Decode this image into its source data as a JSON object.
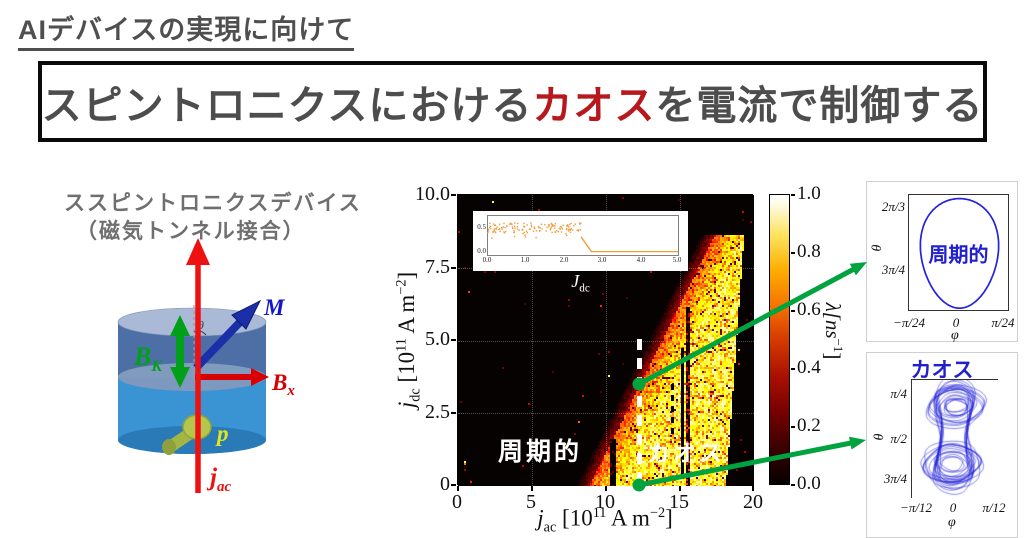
{
  "heading": "AIデバイスの実現に向けて",
  "title": {
    "pre": "スピントロニクスにおける",
    "highlight": "カオス",
    "post": "を電流で制御する"
  },
  "device": {
    "caption_line1": "ススピントロニクスデバイス",
    "caption_line2": "（磁気トンネル接合）",
    "labels": {
      "m": "M",
      "bk_var": "B",
      "bk_sub": "K",
      "bx_var": "B",
      "bx_sub": "x",
      "p": "p",
      "theta": "θ",
      "jac_var": "j",
      "jac_sub": "ac"
    }
  },
  "heatmap": {
    "yticks": [
      "10.0",
      "7.5",
      "5.0",
      "2.5",
      "0"
    ],
    "xticks": [
      "0",
      "5",
      "10",
      "15",
      "20"
    ],
    "ylabel": {
      "var": "j",
      "sub": "dc",
      "a": " [10",
      "exp": "11",
      "b": " A m",
      "exp2": "−2",
      "c": "]"
    },
    "xlabel": {
      "var": "j",
      "sub": "ac",
      "a": " [10",
      "exp": "11",
      "b": " A m",
      "exp2": "−2",
      "c": "]"
    },
    "region_periodic": "周期的",
    "region_chaos": "カオス",
    "inset": {
      "xticks": [
        "0.0",
        "1.0",
        "2.0",
        "3.0",
        "4.0",
        "5.0"
      ],
      "yticks": [
        "0.5",
        "0.0"
      ],
      "xlabel_var": "J",
      "xlabel_sub": "dc"
    },
    "colorbar": {
      "ticks": [
        "1.0",
        "0.8",
        "0.6",
        "0.4",
        "0.2",
        "0.0"
      ],
      "label_pre": "λ[ns",
      "label_sup": "−1",
      "label_post": "]"
    }
  },
  "panel_periodic": {
    "title": "周期的",
    "yticks": [
      "2π/3",
      "3π/4"
    ],
    "xticks": [
      "−π/24",
      "0",
      "π/24"
    ],
    "xlabel": "φ",
    "ylabel": "θ"
  },
  "panel_chaos": {
    "title": "カオス",
    "yticks": [
      "π/4",
      "π/2",
      "3π/4"
    ],
    "xticks": [
      "−π/12",
      "0",
      "π/12"
    ],
    "xlabel": "φ",
    "ylabel": "θ"
  },
  "colors": {
    "accent_green": "#00a33e",
    "accent_red": "#e31414",
    "accent_blue": "#2222d8",
    "title_red": "#b7181c",
    "gray_text": "#4d4d4d"
  },
  "chart_data": [
    {
      "id": "phase_diagram",
      "type": "heatmap",
      "xlabel": "j_ac [10^11 A m^-2]",
      "ylabel": "j_dc [10^11 A m^-2]",
      "xlim": [
        0,
        20
      ],
      "ylim": [
        0,
        10
      ],
      "grid": true,
      "colorbar_label": "lambda [ns^-1]",
      "colorbar_lim": [
        0,
        1
      ],
      "chaotic_band": {
        "left_edge_x_at_y0": 8.8,
        "left_edge_slope": 0.98,
        "right_edge_x_at_y0": 18.05,
        "right_edge_slope": 0.14,
        "y_top": 8.65,
        "lambda_range": [
          0.25,
          0.95
        ]
      },
      "periodic_windows": [
        {
          "x": [
            10.22,
            10.6
          ],
          "y": [
            0,
            1.65
          ]
        },
        {
          "x": [
            15.28,
            15.62
          ],
          "y": [
            0,
            6.2
          ]
        }
      ],
      "overlays": {
        "white_dashed_line": {
          "x": 12.2,
          "y": [
            0,
            5.05
          ]
        },
        "black_solid_line": {
          "x": 15.1,
          "y": [
            0.1,
            4.6
          ]
        },
        "black_dashed_line": {
          "x": 14.4,
          "y": [
            1.7,
            3.5
          ]
        }
      },
      "markers": [
        {
          "x": 12.3,
          "y": 3.45
        },
        {
          "x": 12.3,
          "y": 0.0
        }
      ],
      "region_labels": [
        {
          "text": "周期的",
          "x": 4.2,
          "y": 1.5
        },
        {
          "text": "カオス",
          "x": 14.2,
          "y": 1.4
        }
      ]
    },
    {
      "id": "lyapunov_inset",
      "type": "scatter+line",
      "xlabel": "J_dc",
      "xlim": [
        0,
        5
      ],
      "ylim": [
        -0.07,
        0.75
      ],
      "xticks": [
        0.0,
        1.0,
        2.0,
        3.0,
        4.0,
        5.0
      ],
      "yticks": [
        0.0,
        0.5
      ],
      "scatter": {
        "x_range": [
          0,
          2.45
        ],
        "y_mean": 0.5,
        "y_spread": 0.2,
        "n": 140
      },
      "line": [
        [
          2.45,
          0.3
        ],
        [
          2.72,
          0.0
        ],
        [
          5.0,
          0.0
        ]
      ]
    },
    {
      "id": "periodic_orbit",
      "type": "line",
      "xlabel": "phi",
      "ylabel": "theta",
      "xlim": [
        -0.15,
        0.15
      ],
      "ylim": [
        2.044,
        2.531
      ],
      "orbit": {
        "theta_center": 2.287,
        "theta_amp": 0.228,
        "phi_amp": 0.115,
        "egg_k": 0.15
      }
    },
    {
      "id": "chaotic_attractor",
      "type": "line",
      "xlabel": "phi",
      "ylabel": "theta",
      "xlim": [
        -0.282,
        0.302
      ],
      "ylim": [
        0.53,
        2.73
      ],
      "outer_loops": {
        "theta_center": 1.55,
        "r_theta": 1.04,
        "r_phi": 0.27,
        "pinch": 0.32,
        "count": 9
      },
      "lobes": [
        {
          "theta": 1.02,
          "phi": 0.015,
          "r_theta": 0.46,
          "r_phi": 0.21,
          "loops": 13
        },
        {
          "theta": 2.08,
          "phi": -0.012,
          "r_theta": 0.46,
          "r_phi": 0.21,
          "loops": 13
        }
      ]
    }
  ]
}
